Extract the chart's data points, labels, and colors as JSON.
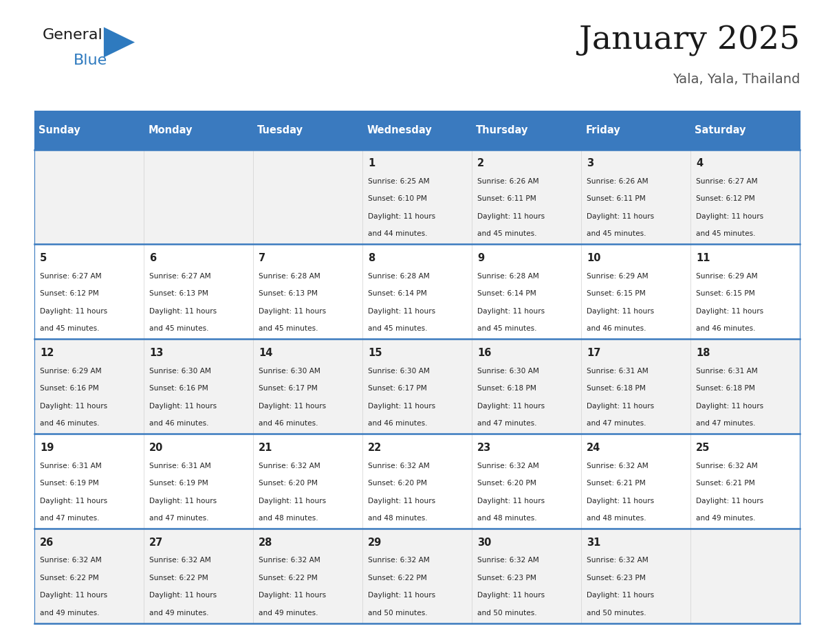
{
  "title": "January 2025",
  "subtitle": "Yala, Yala, Thailand",
  "days_of_week": [
    "Sunday",
    "Monday",
    "Tuesday",
    "Wednesday",
    "Thursday",
    "Friday",
    "Saturday"
  ],
  "header_bg": "#3a7abf",
  "header_text": "#ffffff",
  "cell_bg_even": "#f2f2f2",
  "cell_bg_odd": "#ffffff",
  "row_line_color": "#3a7abf",
  "text_color": "#222222",
  "calendar_data": [
    [
      null,
      null,
      null,
      {
        "day": 1,
        "sunrise": "6:25 AM",
        "sunset": "6:10 PM",
        "daylight": "11 hours and 44 minutes."
      },
      {
        "day": 2,
        "sunrise": "6:26 AM",
        "sunset": "6:11 PM",
        "daylight": "11 hours and 45 minutes."
      },
      {
        "day": 3,
        "sunrise": "6:26 AM",
        "sunset": "6:11 PM",
        "daylight": "11 hours and 45 minutes."
      },
      {
        "day": 4,
        "sunrise": "6:27 AM",
        "sunset": "6:12 PM",
        "daylight": "11 hours and 45 minutes."
      }
    ],
    [
      {
        "day": 5,
        "sunrise": "6:27 AM",
        "sunset": "6:12 PM",
        "daylight": "11 hours and 45 minutes."
      },
      {
        "day": 6,
        "sunrise": "6:27 AM",
        "sunset": "6:13 PM",
        "daylight": "11 hours and 45 minutes."
      },
      {
        "day": 7,
        "sunrise": "6:28 AM",
        "sunset": "6:13 PM",
        "daylight": "11 hours and 45 minutes."
      },
      {
        "day": 8,
        "sunrise": "6:28 AM",
        "sunset": "6:14 PM",
        "daylight": "11 hours and 45 minutes."
      },
      {
        "day": 9,
        "sunrise": "6:28 AM",
        "sunset": "6:14 PM",
        "daylight": "11 hours and 45 minutes."
      },
      {
        "day": 10,
        "sunrise": "6:29 AM",
        "sunset": "6:15 PM",
        "daylight": "11 hours and 46 minutes."
      },
      {
        "day": 11,
        "sunrise": "6:29 AM",
        "sunset": "6:15 PM",
        "daylight": "11 hours and 46 minutes."
      }
    ],
    [
      {
        "day": 12,
        "sunrise": "6:29 AM",
        "sunset": "6:16 PM",
        "daylight": "11 hours and 46 minutes."
      },
      {
        "day": 13,
        "sunrise": "6:30 AM",
        "sunset": "6:16 PM",
        "daylight": "11 hours and 46 minutes."
      },
      {
        "day": 14,
        "sunrise": "6:30 AM",
        "sunset": "6:17 PM",
        "daylight": "11 hours and 46 minutes."
      },
      {
        "day": 15,
        "sunrise": "6:30 AM",
        "sunset": "6:17 PM",
        "daylight": "11 hours and 46 minutes."
      },
      {
        "day": 16,
        "sunrise": "6:30 AM",
        "sunset": "6:18 PM",
        "daylight": "11 hours and 47 minutes."
      },
      {
        "day": 17,
        "sunrise": "6:31 AM",
        "sunset": "6:18 PM",
        "daylight": "11 hours and 47 minutes."
      },
      {
        "day": 18,
        "sunrise": "6:31 AM",
        "sunset": "6:18 PM",
        "daylight": "11 hours and 47 minutes."
      }
    ],
    [
      {
        "day": 19,
        "sunrise": "6:31 AM",
        "sunset": "6:19 PM",
        "daylight": "11 hours and 47 minutes."
      },
      {
        "day": 20,
        "sunrise": "6:31 AM",
        "sunset": "6:19 PM",
        "daylight": "11 hours and 47 minutes."
      },
      {
        "day": 21,
        "sunrise": "6:32 AM",
        "sunset": "6:20 PM",
        "daylight": "11 hours and 48 minutes."
      },
      {
        "day": 22,
        "sunrise": "6:32 AM",
        "sunset": "6:20 PM",
        "daylight": "11 hours and 48 minutes."
      },
      {
        "day": 23,
        "sunrise": "6:32 AM",
        "sunset": "6:20 PM",
        "daylight": "11 hours and 48 minutes."
      },
      {
        "day": 24,
        "sunrise": "6:32 AM",
        "sunset": "6:21 PM",
        "daylight": "11 hours and 48 minutes."
      },
      {
        "day": 25,
        "sunrise": "6:32 AM",
        "sunset": "6:21 PM",
        "daylight": "11 hours and 49 minutes."
      }
    ],
    [
      {
        "day": 26,
        "sunrise": "6:32 AM",
        "sunset": "6:22 PM",
        "daylight": "11 hours and 49 minutes."
      },
      {
        "day": 27,
        "sunrise": "6:32 AM",
        "sunset": "6:22 PM",
        "daylight": "11 hours and 49 minutes."
      },
      {
        "day": 28,
        "sunrise": "6:32 AM",
        "sunset": "6:22 PM",
        "daylight": "11 hours and 49 minutes."
      },
      {
        "day": 29,
        "sunrise": "6:32 AM",
        "sunset": "6:22 PM",
        "daylight": "11 hours and 50 minutes."
      },
      {
        "day": 30,
        "sunrise": "6:32 AM",
        "sunset": "6:23 PM",
        "daylight": "11 hours and 50 minutes."
      },
      {
        "day": 31,
        "sunrise": "6:32 AM",
        "sunset": "6:23 PM",
        "daylight": "11 hours and 50 minutes."
      },
      null
    ]
  ],
  "logo_triangle_color": "#2e7abf",
  "fig_width": 11.88,
  "fig_height": 9.18,
  "dpi": 100
}
